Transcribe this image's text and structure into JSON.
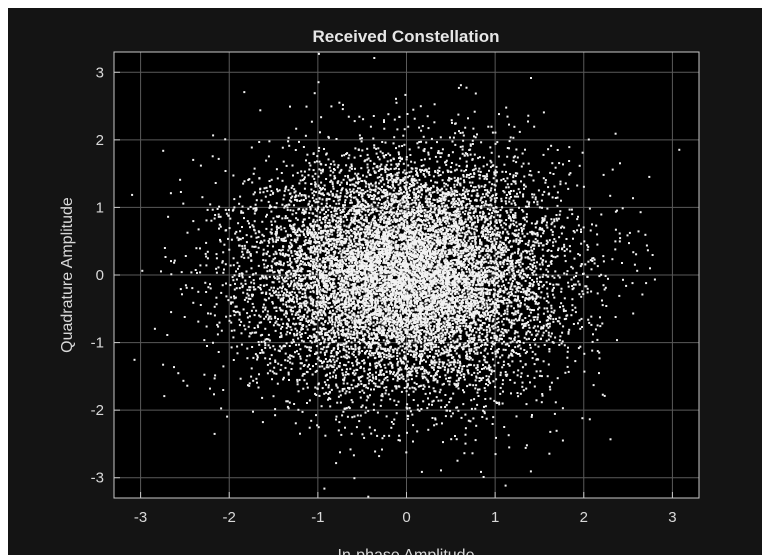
{
  "chart_data": {
    "type": "scatter",
    "title": "Received Constellation",
    "xlabel": "In-phase Amplitude",
    "ylabel": "Quadrature Amplitude",
    "xlim": [
      -3.3,
      3.3
    ],
    "ylim": [
      -3.3,
      3.3
    ],
    "xticks": [
      -3,
      -2,
      -1,
      0,
      1,
      2,
      3
    ],
    "yticks": [
      -3,
      -2,
      -1,
      0,
      1,
      2,
      3
    ],
    "grid": true,
    "series": [
      {
        "distribution": "gaussian",
        "center": [
          0,
          0
        ],
        "std": [
          0.85,
          0.85
        ],
        "num_points": 12000,
        "point_color": "#f2f2f2"
      }
    ]
  },
  "style": {
    "figure_bg": "#141414",
    "axes_bg": "#000000",
    "axis_color": "#c8c8c8",
    "grid_color": "#5a5a5a",
    "text_color": "#d9d9d9",
    "title_color": "#e6e6e6"
  }
}
